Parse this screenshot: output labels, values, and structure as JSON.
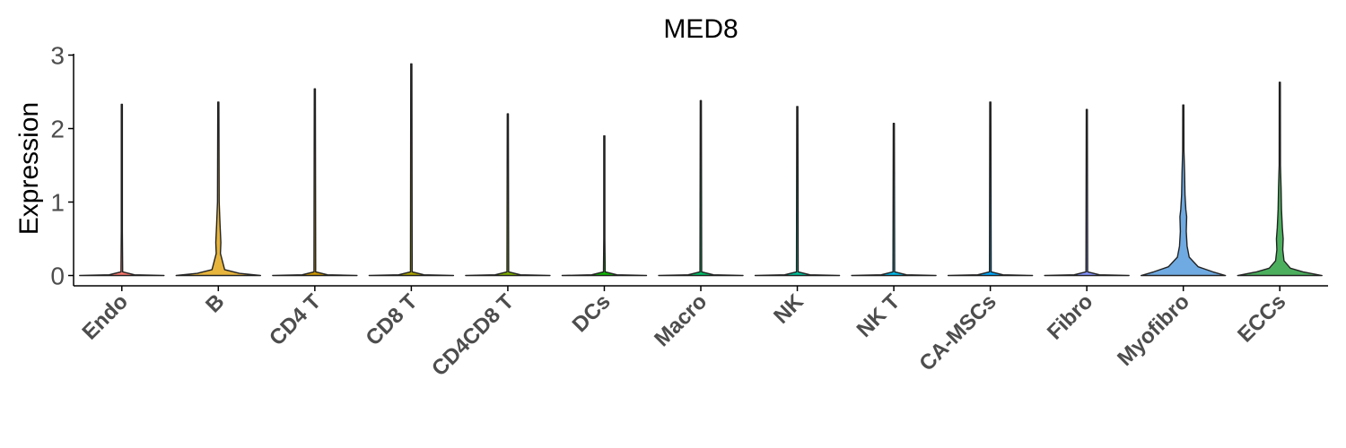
{
  "chart_data": {
    "type": "violin",
    "title": "MED8",
    "xlabel": "",
    "ylabel": "Expression",
    "ylim": [
      0,
      3
    ],
    "yticks": [
      0,
      1,
      2,
      3
    ],
    "grid": false,
    "legend": "none",
    "categories": [
      "Endo",
      "B",
      "CD4 T",
      "CD8 T",
      "CD4CD8 T",
      "DCs",
      "Macro",
      "NK",
      "NK T",
      "CA-MSCs",
      "Fibro",
      "Myofibro",
      "ECCs"
    ],
    "series": [
      {
        "category": "Endo",
        "color": "#F8766D",
        "max": 2.33,
        "density": [
          [
            0,
            1.0
          ],
          [
            0.01,
            0.3
          ],
          [
            0.05,
            0.02
          ],
          [
            0.6,
            0.01
          ],
          [
            2.33,
            0.005
          ]
        ]
      },
      {
        "category": "B",
        "color": "#E7B43C",
        "max": 2.36,
        "density": [
          [
            0,
            1.0
          ],
          [
            0.03,
            0.5
          ],
          [
            0.08,
            0.15
          ],
          [
            0.3,
            0.05
          ],
          [
            0.45,
            0.06
          ],
          [
            0.7,
            0.04
          ],
          [
            1.0,
            0.02
          ],
          [
            2.36,
            0.005
          ]
        ]
      },
      {
        "category": "CD4 T",
        "color": "#CD9600",
        "max": 2.54,
        "density": [
          [
            0,
            1.0
          ],
          [
            0.01,
            0.3
          ],
          [
            0.05,
            0.02
          ],
          [
            2.54,
            0.005
          ]
        ]
      },
      {
        "category": "CD8 T",
        "color": "#ABA300",
        "max": 2.88,
        "density": [
          [
            0,
            1.0
          ],
          [
            0.01,
            0.3
          ],
          [
            0.05,
            0.02
          ],
          [
            2.88,
            0.005
          ]
        ]
      },
      {
        "category": "CD4CD8 T",
        "color": "#7CAE00",
        "max": 2.2,
        "density": [
          [
            0,
            1.0
          ],
          [
            0.01,
            0.3
          ],
          [
            0.05,
            0.02
          ],
          [
            2.2,
            0.005
          ]
        ]
      },
      {
        "category": "DCs",
        "color": "#0CB702",
        "max": 1.9,
        "density": [
          [
            0,
            1.0
          ],
          [
            0.01,
            0.3
          ],
          [
            0.05,
            0.02
          ],
          [
            0.5,
            0.01
          ],
          [
            1.9,
            0.005
          ]
        ]
      },
      {
        "category": "Macro",
        "color": "#00BE67",
        "max": 2.38,
        "density": [
          [
            0,
            1.0
          ],
          [
            0.01,
            0.3
          ],
          [
            0.05,
            0.02
          ],
          [
            2.38,
            0.005
          ]
        ]
      },
      {
        "category": "NK",
        "color": "#00C19A",
        "max": 2.3,
        "density": [
          [
            0,
            1.0
          ],
          [
            0.01,
            0.3
          ],
          [
            0.05,
            0.02
          ],
          [
            2.3,
            0.005
          ]
        ]
      },
      {
        "category": "NK T",
        "color": "#00B8E7",
        "max": 2.07,
        "density": [
          [
            0,
            1.0
          ],
          [
            0.01,
            0.3
          ],
          [
            0.05,
            0.02
          ],
          [
            2.07,
            0.005
          ]
        ]
      },
      {
        "category": "CA-MSCs",
        "color": "#00A9FF",
        "max": 2.36,
        "density": [
          [
            0,
            1.0
          ],
          [
            0.01,
            0.3
          ],
          [
            0.05,
            0.02
          ],
          [
            2.36,
            0.005
          ]
        ]
      },
      {
        "category": "Fibro",
        "color": "#8494FF",
        "max": 2.26,
        "density": [
          [
            0,
            1.0
          ],
          [
            0.01,
            0.3
          ],
          [
            0.05,
            0.02
          ],
          [
            2.26,
            0.005
          ]
        ]
      },
      {
        "category": "Myofibro",
        "color": "#6FAAE2",
        "max": 2.32,
        "density": [
          [
            0,
            1.0
          ],
          [
            0.05,
            0.7
          ],
          [
            0.12,
            0.35
          ],
          [
            0.25,
            0.14
          ],
          [
            0.4,
            0.09
          ],
          [
            0.6,
            0.07
          ],
          [
            0.8,
            0.08
          ],
          [
            0.9,
            0.06
          ],
          [
            1.1,
            0.04
          ],
          [
            1.4,
            0.03
          ],
          [
            1.7,
            0.015
          ],
          [
            2.32,
            0.005
          ]
        ]
      },
      {
        "category": "ECCs",
        "color": "#4CAF5E",
        "max": 2.63,
        "density": [
          [
            0,
            1.0
          ],
          [
            0.05,
            0.55
          ],
          [
            0.1,
            0.25
          ],
          [
            0.2,
            0.1
          ],
          [
            0.35,
            0.07
          ],
          [
            0.5,
            0.08
          ],
          [
            0.65,
            0.06
          ],
          [
            0.9,
            0.04
          ],
          [
            1.2,
            0.03
          ],
          [
            1.5,
            0.015
          ],
          [
            2.63,
            0.005
          ]
        ]
      }
    ]
  }
}
